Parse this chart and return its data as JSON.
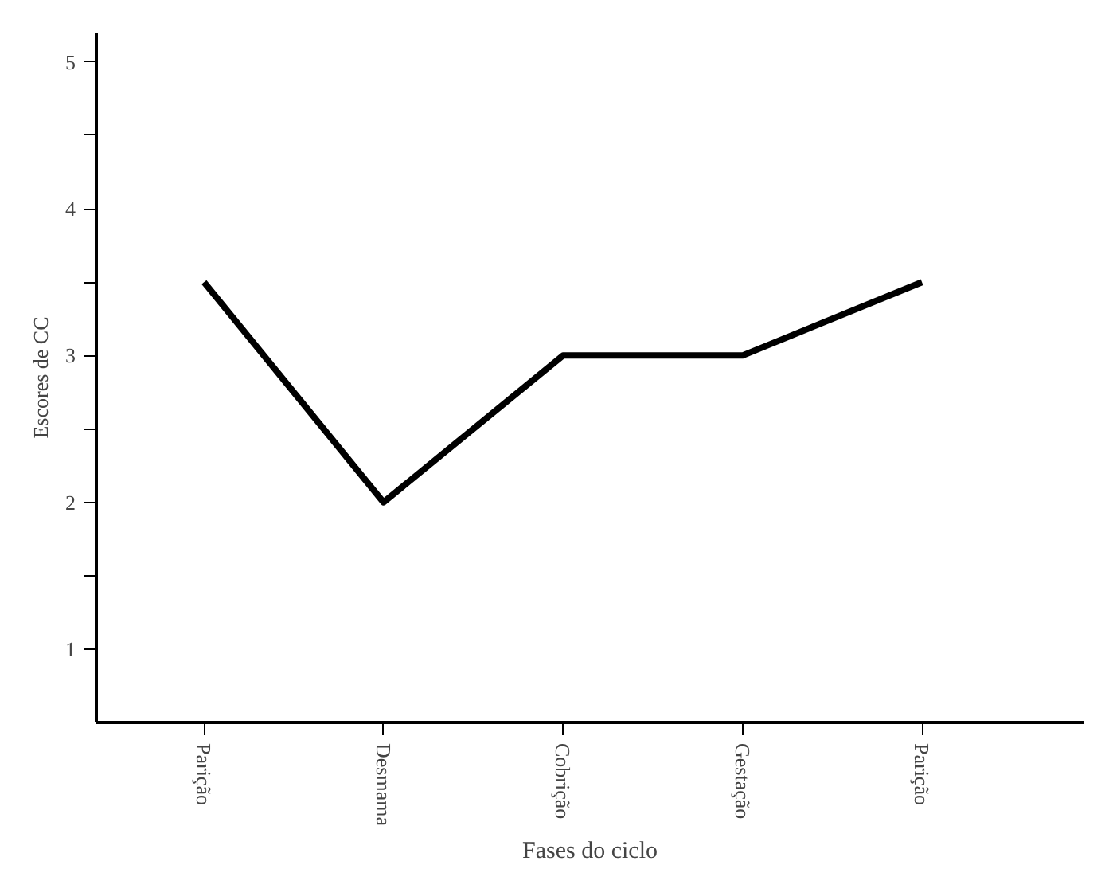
{
  "chart_data": {
    "type": "line",
    "xlabel": "Fases do ciclo",
    "ylabel": "Escores de CC",
    "categories": [
      "Parição",
      "Desmama",
      "Cobrição",
      "Gestação",
      "Parição"
    ],
    "series": [
      {
        "color": "#000000",
        "values": [
          3.5,
          2,
          3,
          3,
          3.5
        ]
      }
    ],
    "ylim": [
      0.5,
      5.2
    ],
    "yticks": [
      1,
      {
        "value": 1.5,
        "label": null
      },
      2,
      {
        "value": 2.5,
        "label": null
      },
      3,
      {
        "value": 3.5,
        "label": null
      },
      4,
      {
        "value": 4.5,
        "label": null
      },
      5
    ],
    "grid": false,
    "marker": "none",
    "line_style": "solid"
  }
}
